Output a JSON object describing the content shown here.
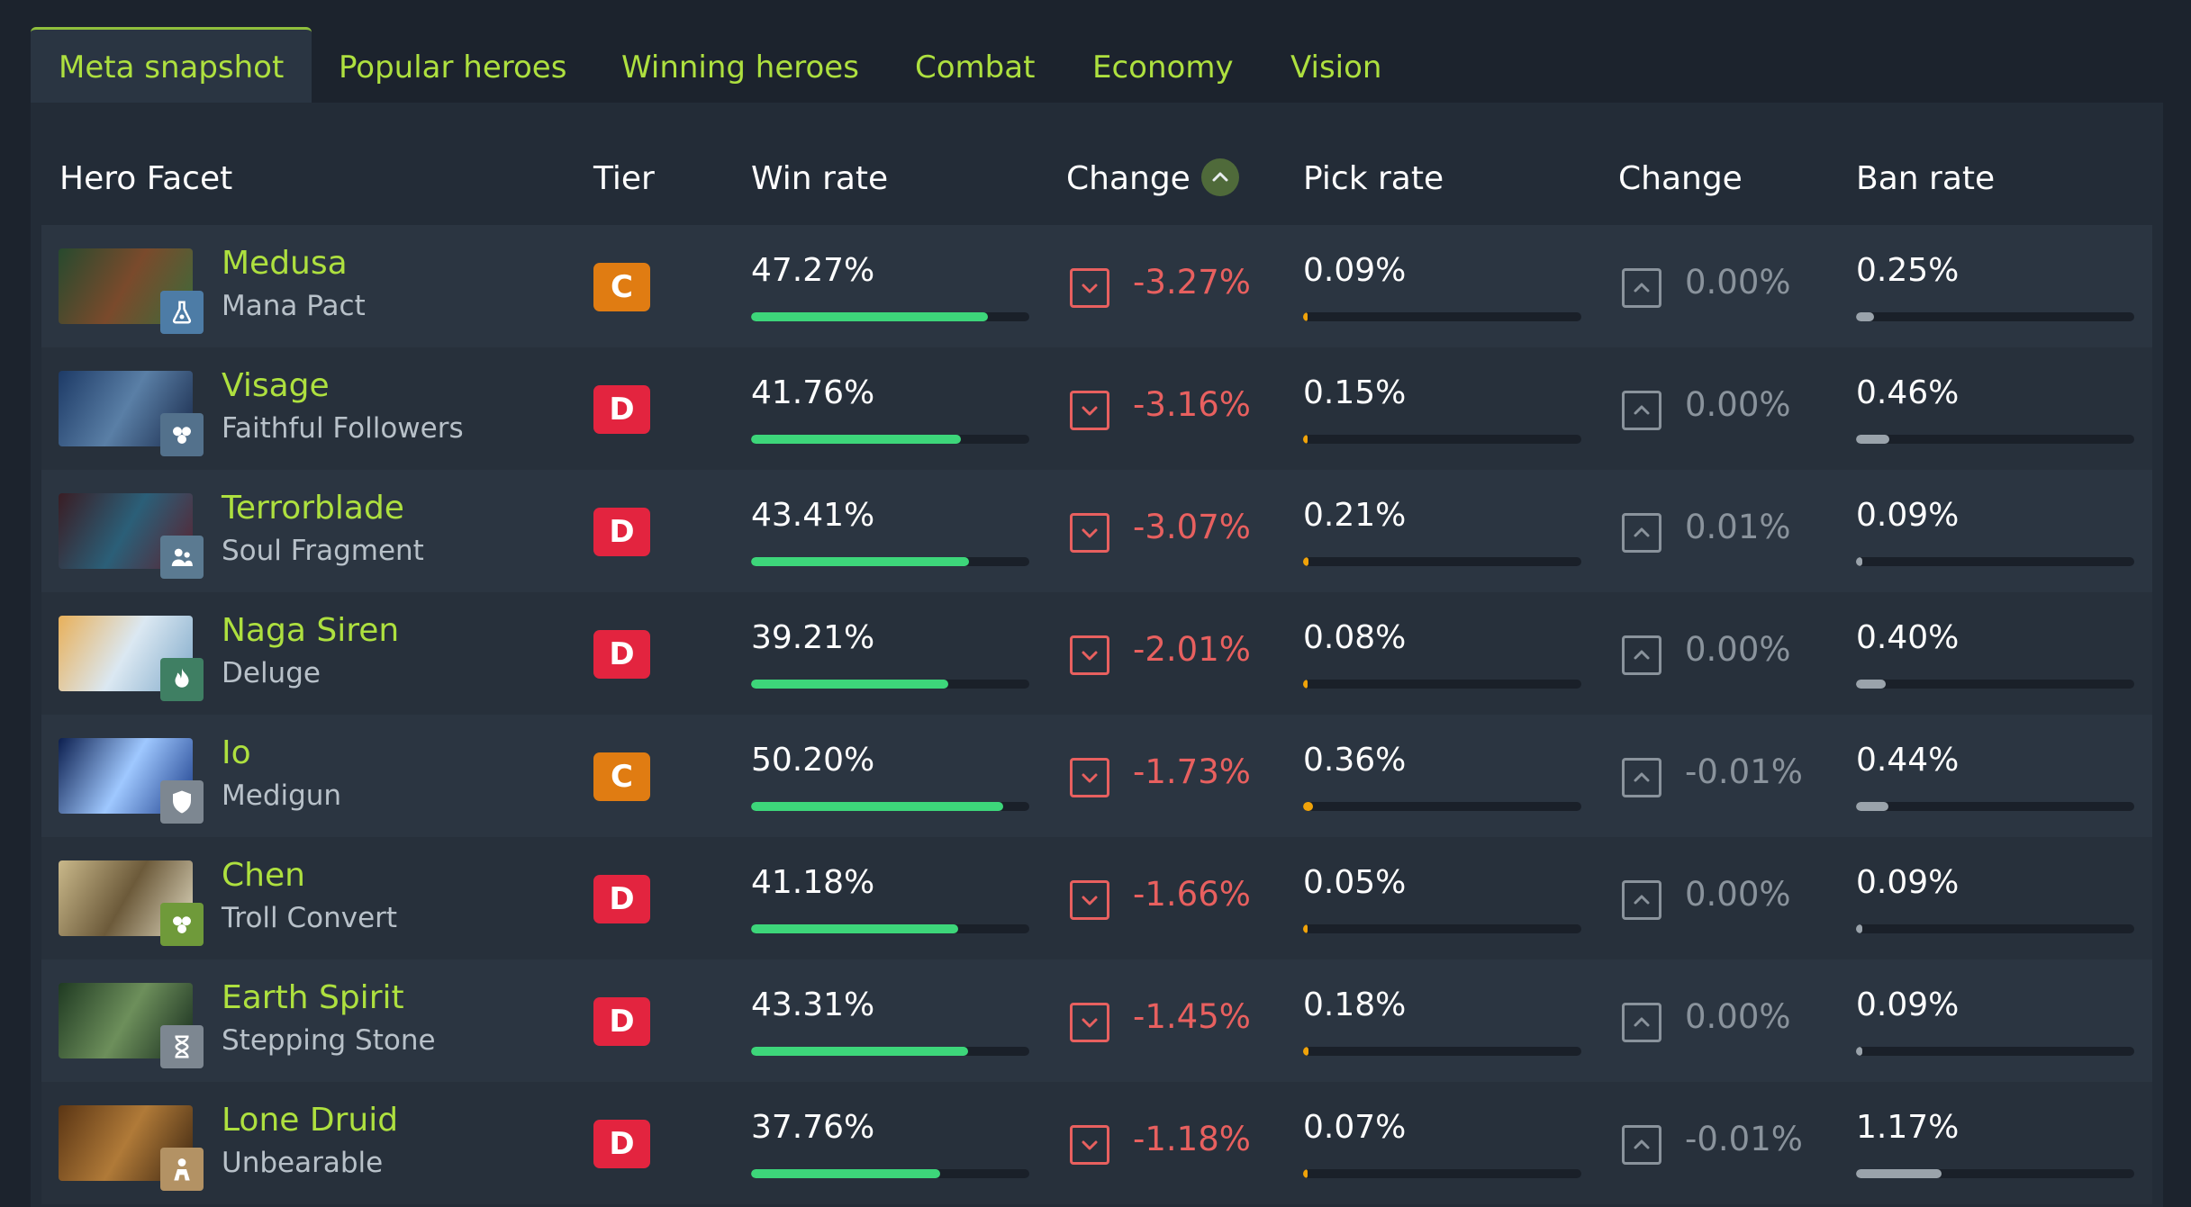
{
  "tabs": [
    "Meta snapshot",
    "Popular heroes",
    "Winning heroes",
    "Combat",
    "Economy",
    "Vision"
  ],
  "active_tab": "Meta snapshot",
  "columns": {
    "hero_facet": "Hero Facet",
    "tier": "Tier",
    "win_rate": "Win rate",
    "win_change": "Change",
    "pick_rate": "Pick rate",
    "pick_change": "Change",
    "ban_rate": "Ban rate"
  },
  "colors": {
    "accent_green": "#aee03f",
    "winrate_bar": "#3dd67a",
    "pickrate_bar": "#f0a30a",
    "banrate_bar": "#9aa3ab",
    "negative": "#e8605f",
    "neutral": "#8a939c",
    "tier_C": "#e07c12",
    "tier_D": "#e3243f"
  },
  "rows": [
    {
      "hero": "Medusa",
      "facet": "Mana Pact",
      "facet_icon": "flask-icon",
      "facet_color": "#4d7ca6",
      "tier": "C",
      "win_rate": "47.27%",
      "win_fraction": 0.8527,
      "win_change": "-3.27%",
      "pick_rate": "0.09%",
      "pick_fraction": 0.09,
      "pick_change": "0.00%",
      "ban_rate": "0.25%",
      "ban_fraction": 0.25
    },
    {
      "hero": "Visage",
      "facet": "Faithful Followers",
      "facet_icon": "familiars-icon",
      "facet_color": "#53718c",
      "tier": "D",
      "win_rate": "41.76%",
      "win_fraction": 0.7534,
      "win_change": "-3.16%",
      "pick_rate": "0.15%",
      "pick_fraction": 0.15,
      "pick_change": "0.00%",
      "ban_rate": "0.46%",
      "ban_fraction": 0.46
    },
    {
      "hero": "Terrorblade",
      "facet": "Soul Fragment",
      "facet_icon": "people-icon",
      "facet_color": "#5b7a91",
      "tier": "D",
      "win_rate": "43.41%",
      "win_fraction": 0.7831,
      "win_change": "-3.07%",
      "pick_rate": "0.21%",
      "pick_fraction": 0.21,
      "pick_change": "0.01%",
      "ban_rate": "0.09%",
      "ban_fraction": 0.09
    },
    {
      "hero": "Naga Siren",
      "facet": "Deluge",
      "facet_icon": "fire-hand-icon",
      "facet_color": "#3f7f63",
      "tier": "D",
      "win_rate": "39.21%",
      "win_fraction": 0.7073,
      "win_change": "-2.01%",
      "pick_rate": "0.08%",
      "pick_fraction": 0.08,
      "pick_change": "0.00%",
      "ban_rate": "0.40%",
      "ban_fraction": 0.4
    },
    {
      "hero": "Io",
      "facet": "Medigun",
      "facet_icon": "shield-icon",
      "facet_color": "#7d8791",
      "tier": "C",
      "win_rate": "50.20%",
      "win_fraction": 0.9056,
      "win_change": "-1.73%",
      "pick_rate": "0.36%",
      "pick_fraction": 0.36,
      "pick_change": "-0.01%",
      "ban_rate": "0.44%",
      "ban_fraction": 0.44
    },
    {
      "hero": "Chen",
      "facet": "Troll Convert",
      "facet_icon": "familiars-icon",
      "facet_color": "#6f9a3a",
      "tier": "D",
      "win_rate": "41.18%",
      "win_fraction": 0.7429,
      "win_change": "-1.66%",
      "pick_rate": "0.05%",
      "pick_fraction": 0.05,
      "pick_change": "0.00%",
      "ban_rate": "0.09%",
      "ban_fraction": 0.09
    },
    {
      "hero": "Earth Spirit",
      "facet": "Stepping Stone",
      "facet_icon": "hourglass-icon",
      "facet_color": "#7d8791",
      "tier": "D",
      "win_rate": "43.31%",
      "win_fraction": 0.7813,
      "win_change": "-1.45%",
      "pick_rate": "0.18%",
      "pick_fraction": 0.18,
      "pick_change": "0.00%",
      "ban_rate": "0.09%",
      "ban_fraction": 0.09
    },
    {
      "hero": "Lone Druid",
      "facet": "Unbearable",
      "facet_icon": "bear-icon",
      "facet_color": "#b39264",
      "tier": "D",
      "win_rate": "37.76%",
      "win_fraction": 0.6812,
      "win_change": "-1.18%",
      "pick_rate": "0.07%",
      "pick_fraction": 0.07,
      "pick_change": "-0.01%",
      "ban_rate": "1.17%",
      "ban_fraction": 1.17
    }
  ]
}
